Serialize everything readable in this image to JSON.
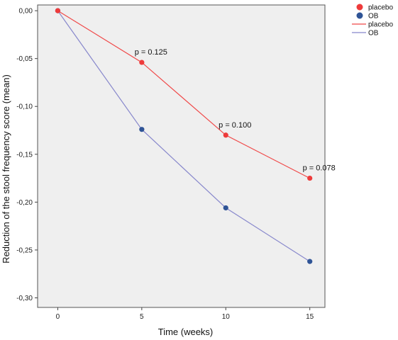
{
  "chart_data": {
    "type": "line",
    "xlabel": "Time (weeks)",
    "ylabel": "Reduction of  the stool frequency score (mean)",
    "x": [
      0,
      5,
      10,
      15
    ],
    "x_tick_labels": [
      "0",
      "5",
      "10",
      "15"
    ],
    "xlim": [
      -1.2,
      15.9
    ],
    "ylim": [
      -0.31,
      0.006
    ],
    "y_ticks": [
      0.0,
      -0.05,
      -0.1,
      -0.15,
      -0.2,
      -0.25,
      -0.3
    ],
    "y_tick_labels": [
      "0,00",
      "-0,05",
      "-0,10",
      "-0,15",
      "-0,20",
      "-0,25",
      "-0,30"
    ],
    "grid": false,
    "legend_position": "top-right, outside plot",
    "series": [
      {
        "name": "placebo",
        "color": "#f04848",
        "marker_color": "#ee3b3b",
        "values": [
          0.0,
          -0.054,
          -0.13,
          -0.175
        ]
      },
      {
        "name": "OB",
        "color": "#8888cc",
        "marker_color": "#2f5496",
        "values": [
          0.0,
          -0.124,
          -0.206,
          -0.262
        ]
      }
    ],
    "legend": {
      "markers": [
        {
          "label": "placebo",
          "color": "#ee3b3b"
        },
        {
          "label": "OB",
          "color": "#2f5496"
        }
      ],
      "lines": [
        {
          "label": "placebo",
          "color": "#f04848"
        },
        {
          "label": "OB",
          "color": "#8888cc"
        }
      ]
    },
    "annotations": [
      {
        "text": "p = 0.125",
        "x": 5,
        "y": -0.054
      },
      {
        "text": "p = 0.100",
        "x": 10,
        "y": -0.13
      },
      {
        "text": "p = 0.078",
        "x": 15,
        "y": -0.175
      }
    ],
    "plot_background": "#efefef"
  }
}
